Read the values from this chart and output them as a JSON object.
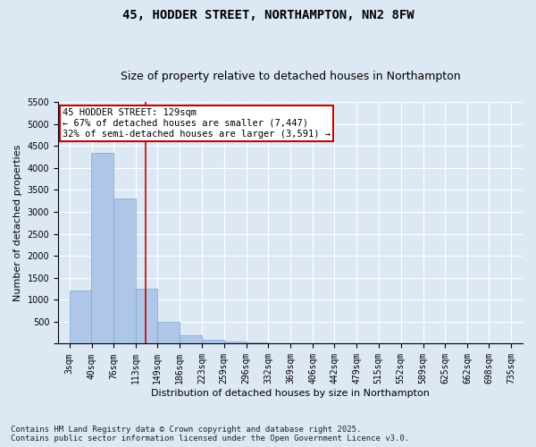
{
  "title": "45, HODDER STREET, NORTHAMPTON, NN2 8FW",
  "subtitle": "Size of property relative to detached houses in Northampton",
  "xlabel": "Distribution of detached houses by size in Northampton",
  "ylabel": "Number of detached properties",
  "bar_color": "#aec6e8",
  "bar_edge_color": "#7aa8cc",
  "background_color": "#dde8f5",
  "grid_color": "#ffffff",
  "fig_background": "#dde8f5",
  "bins": [
    3,
    40,
    76,
    113,
    149,
    186,
    223,
    259,
    296,
    332,
    369,
    406,
    442,
    479,
    515,
    552,
    589,
    625,
    662,
    698,
    735
  ],
  "bin_labels": [
    "3sqm",
    "40sqm",
    "76sqm",
    "113sqm",
    "149sqm",
    "186sqm",
    "223sqm",
    "259sqm",
    "296sqm",
    "332sqm",
    "369sqm",
    "406sqm",
    "442sqm",
    "479sqm",
    "515sqm",
    "552sqm",
    "589sqm",
    "625sqm",
    "662sqm",
    "698sqm",
    "735sqm"
  ],
  "values": [
    1200,
    4350,
    3300,
    1250,
    500,
    200,
    100,
    50,
    20,
    10,
    5,
    2,
    1,
    1,
    0,
    0,
    0,
    0,
    0,
    0
  ],
  "property_size": 129,
  "vline_color": "#cc0000",
  "annotation_text": "45 HODDER STREET: 129sqm\n← 67% of detached houses are smaller (7,447)\n32% of semi-detached houses are larger (3,591) →",
  "annotation_box_color": "#ffffff",
  "annotation_box_edge_color": "#cc0000",
  "ylim": [
    0,
    5500
  ],
  "yticks": [
    0,
    500,
    1000,
    1500,
    2000,
    2500,
    3000,
    3500,
    4000,
    4500,
    5000,
    5500
  ],
  "footnote": "Contains HM Land Registry data © Crown copyright and database right 2025.\nContains public sector information licensed under the Open Government Licence v3.0.",
  "title_fontsize": 10,
  "subtitle_fontsize": 9,
  "xlabel_fontsize": 8,
  "ylabel_fontsize": 8,
  "tick_fontsize": 7,
  "annotation_fontsize": 7.5,
  "footnote_fontsize": 6.5
}
